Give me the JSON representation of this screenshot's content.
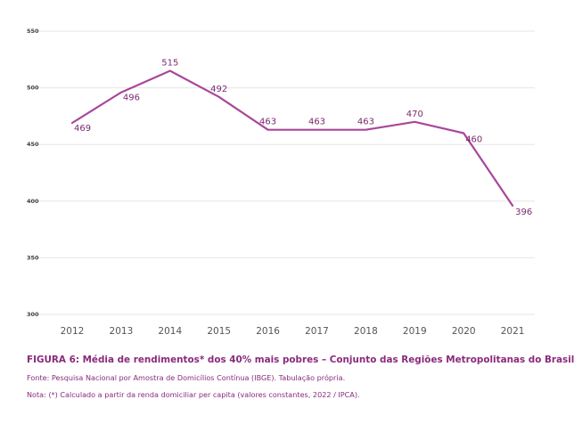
{
  "chart_data": {
    "type": "line",
    "categories": [
      "2012",
      "2013",
      "2014",
      "2015",
      "2016",
      "2017",
      "2018",
      "2019",
      "2020",
      "2021"
    ],
    "series": [
      {
        "values": [
          469,
          496,
          515,
          492,
          463,
          463,
          463,
          470,
          460,
          396
        ]
      }
    ],
    "data_labels": [
      "469",
      "496",
      "515",
      "492",
      "463",
      "463",
      "463",
      "470",
      "460",
      "396"
    ],
    "yticks": [
      "550",
      "500",
      "450",
      "400",
      "350",
      "300"
    ],
    "ylim": [
      300,
      550
    ],
    "grid": true,
    "line_color": "#a8479a",
    "title": "FIGURA 6: Média de rendimentos* dos 40% mais pobres – Conjunto das Regiões Metropolitanas do Brasil",
    "source": "Fonte: Pesquisa Nacional por Amostra de Domicílios Contínua (IBGE). Tabulação própria.",
    "note": "Nota: (*) Calculado a partir da renda domiciliar per capita (valores constantes, 2022 / IPCA)."
  }
}
